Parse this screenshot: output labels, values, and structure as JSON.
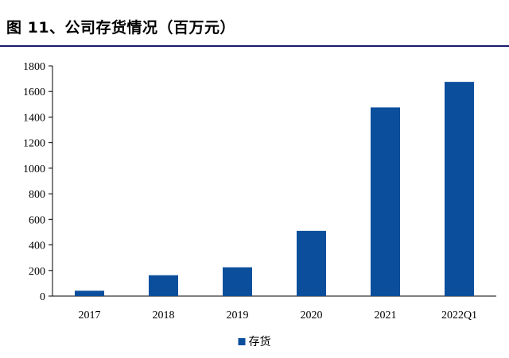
{
  "figure": {
    "title": "图 11、公司存货情况（百万元）"
  },
  "chart_data": {
    "type": "bar",
    "title": "图 11、公司存货情况（百万元）",
    "categories": [
      "2017",
      "2018",
      "2019",
      "2020",
      "2021",
      "2022Q1"
    ],
    "series": [
      {
        "name": "存货",
        "values": [
          42,
          163,
          225,
          510,
          1475,
          1675
        ],
        "color": "#0b4f9c"
      }
    ],
    "xlabel": "",
    "ylabel": "",
    "ylim": [
      0,
      1800
    ],
    "yticks": [
      0,
      200,
      400,
      600,
      800,
      1000,
      1200,
      1400,
      1600,
      1800
    ],
    "grid": false,
    "legend_position": "bottom-center",
    "colors": {
      "bar": "#0b4f9c",
      "axis": "#000000",
      "title_rule": "#1a1a6e"
    }
  }
}
